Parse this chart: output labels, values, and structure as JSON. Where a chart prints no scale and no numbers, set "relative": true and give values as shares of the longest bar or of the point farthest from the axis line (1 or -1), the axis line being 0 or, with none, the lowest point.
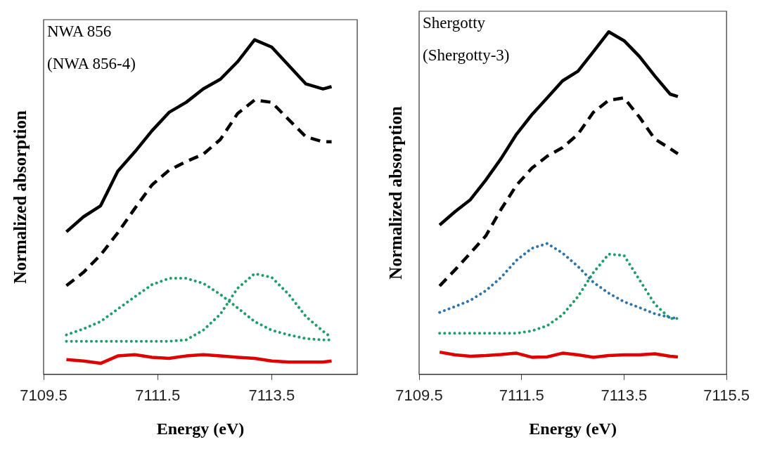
{
  "chart_data": [
    {
      "type": "line",
      "relative": true,
      "xlabel": "Energy (eV)",
      "ylabel": "Normalized absorption",
      "annotations": [
        "NWA 856",
        "(NWA 856-4)"
      ],
      "xlim": [
        7109.5,
        7115.0
      ],
      "xticks": [
        7109.5,
        7111.5,
        7113.5
      ],
      "grid": false,
      "legend": false,
      "marker": "none",
      "x": [
        7109.9,
        7110.2,
        7110.5,
        7110.8,
        7111.1,
        7111.4,
        7111.7,
        7112.0,
        7112.3,
        7112.6,
        7112.9,
        7113.2,
        7113.5,
        7113.8,
        7114.1,
        7114.4,
        7114.55
      ],
      "series": [
        {
          "color": "#000000",
          "line_style": "solid",
          "values": [
            0.426,
            0.471,
            0.504,
            0.607,
            0.665,
            0.728,
            0.783,
            0.813,
            0.853,
            0.882,
            0.934,
            1.0,
            0.978,
            0.923,
            0.868,
            0.853,
            0.86
          ]
        },
        {
          "color": "#000000",
          "line_style": "dashed",
          "values": [
            0.265,
            0.305,
            0.357,
            0.423,
            0.496,
            0.566,
            0.61,
            0.636,
            0.658,
            0.702,
            0.779,
            0.82,
            0.813,
            0.761,
            0.71,
            0.695,
            0.695
          ]
        },
        {
          "color": "#1f9e6a",
          "line_style": "dotted",
          "values": [
            0.118,
            0.136,
            0.158,
            0.195,
            0.232,
            0.268,
            0.287,
            0.287,
            0.272,
            0.239,
            0.199,
            0.158,
            0.132,
            0.118,
            0.107,
            0.103,
            0.103
          ]
        },
        {
          "color": "#1f9e6a",
          "line_style": "dotted",
          "values": [
            0.099,
            0.099,
            0.099,
            0.099,
            0.099,
            0.099,
            0.099,
            0.103,
            0.132,
            0.18,
            0.257,
            0.301,
            0.29,
            0.239,
            0.173,
            0.129,
            0.11
          ]
        },
        {
          "color": "#e00000",
          "line_style": "solid",
          "values": [
            0.044,
            0.04,
            0.033,
            0.055,
            0.059,
            0.051,
            0.048,
            0.055,
            0.059,
            0.055,
            0.051,
            0.048,
            0.04,
            0.037,
            0.037,
            0.037,
            0.04
          ]
        }
      ]
    },
    {
      "type": "line",
      "relative": true,
      "xlabel": "Energy (eV)",
      "ylabel": "Normalized absorption",
      "annotations": [
        "Shergotty",
        "(Shergotty-3)"
      ],
      "xlim": [
        7109.5,
        7115.5
      ],
      "xticks": [
        7109.5,
        7111.5,
        7113.5,
        7115.5
      ],
      "grid": false,
      "legend": false,
      "marker": "none",
      "x": [
        7109.9,
        7110.2,
        7110.5,
        7110.8,
        7111.1,
        7111.4,
        7111.7,
        7112.0,
        7112.3,
        7112.6,
        7112.9,
        7113.2,
        7113.5,
        7113.8,
        7114.1,
        7114.4,
        7114.55
      ],
      "series": [
        {
          "color": "#000000",
          "line_style": "solid",
          "values": [
            0.436,
            0.475,
            0.51,
            0.567,
            0.63,
            0.701,
            0.758,
            0.807,
            0.857,
            0.885,
            0.942,
            1.0,
            0.974,
            0.928,
            0.871,
            0.818,
            0.811
          ]
        },
        {
          "color": "#000000",
          "line_style": "dashed",
          "values": [
            0.258,
            0.305,
            0.354,
            0.404,
            0.482,
            0.552,
            0.602,
            0.637,
            0.662,
            0.701,
            0.765,
            0.8,
            0.807,
            0.751,
            0.687,
            0.659,
            0.644
          ]
        },
        {
          "color": "#2f75a8",
          "line_style": "dotted",
          "values": [
            0.181,
            0.198,
            0.216,
            0.244,
            0.283,
            0.333,
            0.368,
            0.382,
            0.354,
            0.315,
            0.269,
            0.237,
            0.212,
            0.195,
            0.177,
            0.166,
            0.163
          ]
        },
        {
          "color": "#1f9e6a",
          "line_style": "dotted",
          "values": [
            0.12,
            0.12,
            0.12,
            0.12,
            0.12,
            0.12,
            0.127,
            0.142,
            0.174,
            0.227,
            0.297,
            0.351,
            0.347,
            0.276,
            0.205,
            0.163,
            0.163
          ]
        },
        {
          "color": "#e00000",
          "line_style": "solid",
          "values": [
            0.065,
            0.057,
            0.053,
            0.055,
            0.058,
            0.062,
            0.05,
            0.051,
            0.062,
            0.057,
            0.05,
            0.055,
            0.057,
            0.057,
            0.06,
            0.053,
            0.051
          ]
        }
      ]
    }
  ]
}
